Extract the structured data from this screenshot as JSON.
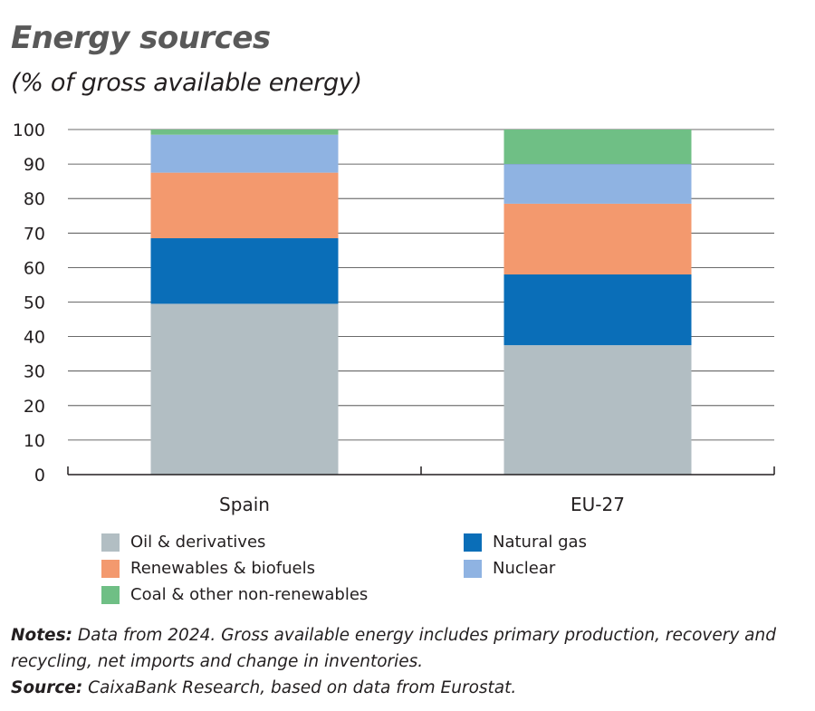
{
  "header": {
    "title": "Energy sources",
    "subtitle": "(% of gross available energy)"
  },
  "chart_data": {
    "type": "bar",
    "stacked": true,
    "title": "Energy sources",
    "subtitle": "(% of gross available energy)",
    "categories": [
      "Spain",
      "EU-27"
    ],
    "ylim": [
      0,
      100
    ],
    "yticks": [
      0,
      10,
      20,
      30,
      40,
      50,
      60,
      70,
      80,
      90,
      100
    ],
    "grid": true,
    "legend_position": "bottom",
    "series": [
      {
        "name": "Oil & derivatives",
        "color": "#b2bec3",
        "values": [
          49.5,
          37.5
        ]
      },
      {
        "name": "Natural gas",
        "color": "#0a6eb8",
        "values": [
          19,
          20.5
        ]
      },
      {
        "name": "Renewables & biofuels",
        "color": "#f3996e",
        "values": [
          19,
          20.5
        ]
      },
      {
        "name": "Nuclear",
        "color": "#8fb3e2",
        "values": [
          11,
          11.5
        ]
      },
      {
        "name": "Coal & other non-renewables",
        "color": "#6fbf85",
        "values": [
          1.5,
          10
        ]
      }
    ]
  },
  "legend": {
    "oil": "Oil & derivatives",
    "gas": "Natural gas",
    "renewables": "Renewables & biofuels",
    "nuclear": "Nuclear",
    "coal": "Coal & other non-renewables"
  },
  "notes": {
    "notes_label": "Notes:",
    "notes_text": "Data from 2024. Gross available energy includes primary production, recovery and recycling, net imports and change in inventories.",
    "source_label": "Source:",
    "source_text": "CaixaBank Research, based on data from Eurostat."
  }
}
